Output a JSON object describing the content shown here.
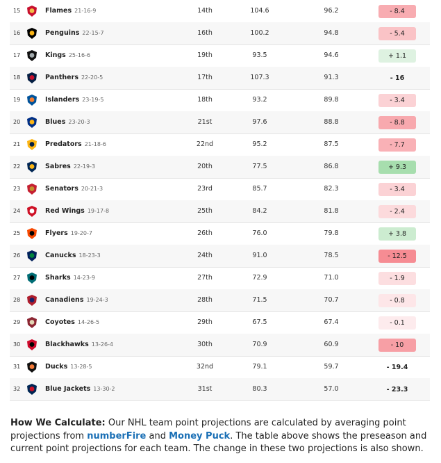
{
  "rows": [
    {
      "rank": "15",
      "team": "Flames",
      "record": "21-16-9",
      "proj_rank": "14th",
      "preseason": "104.6",
      "current": "96.2",
      "change": "- 8.4",
      "change_value": -8.4,
      "logo": "flames-logo",
      "logo_colors": [
        "#c8102e",
        "#f1be48"
      ]
    },
    {
      "rank": "16",
      "team": "Penguins",
      "record": "22-15-7",
      "proj_rank": "16th",
      "preseason": "100.2",
      "current": "94.8",
      "change": "- 5.4",
      "change_value": -5.4,
      "logo": "penguins-logo",
      "logo_colors": [
        "#000000",
        "#fcb514"
      ]
    },
    {
      "rank": "17",
      "team": "Kings",
      "record": "25-16-6",
      "proj_rank": "19th",
      "preseason": "93.5",
      "current": "94.6",
      "change": "+ 1.1",
      "change_value": 1.1,
      "logo": "kings-logo",
      "logo_colors": [
        "#111111",
        "#a2aaad"
      ]
    },
    {
      "rank": "18",
      "team": "Panthers",
      "record": "22-20-5",
      "proj_rank": "17th",
      "preseason": "107.3",
      "current": "91.3",
      "change": "- 16",
      "change_value": -16,
      "logo": "panthers-logo",
      "logo_colors": [
        "#041e42",
        "#c8102e"
      ]
    },
    {
      "rank": "19",
      "team": "Islanders",
      "record": "23-19-5",
      "proj_rank": "18th",
      "preseason": "93.2",
      "current": "89.8",
      "change": "- 3.4",
      "change_value": -3.4,
      "logo": "islanders-logo",
      "logo_colors": [
        "#00539b",
        "#f47d30"
      ]
    },
    {
      "rank": "20",
      "team": "Blues",
      "record": "23-20-3",
      "proj_rank": "21st",
      "preseason": "97.6",
      "current": "88.8",
      "change": "- 8.8",
      "change_value": -8.8,
      "logo": "blues-logo",
      "logo_colors": [
        "#002f87",
        "#fcb514"
      ]
    },
    {
      "rank": "21",
      "team": "Predators",
      "record": "21-18-6",
      "proj_rank": "22nd",
      "preseason": "95.2",
      "current": "87.5",
      "change": "- 7.7",
      "change_value": -7.7,
      "logo": "predators-logo",
      "logo_colors": [
        "#fcb514",
        "#041e42"
      ]
    },
    {
      "rank": "22",
      "team": "Sabres",
      "record": "22-19-3",
      "proj_rank": "20th",
      "preseason": "77.5",
      "current": "86.8",
      "change": "+ 9.3",
      "change_value": 9.3,
      "logo": "sabres-logo",
      "logo_colors": [
        "#002654",
        "#fcb514"
      ]
    },
    {
      "rank": "23",
      "team": "Senators",
      "record": "20-21-3",
      "proj_rank": "23rd",
      "preseason": "85.7",
      "current": "82.3",
      "change": "- 3.4",
      "change_value": -3.4,
      "logo": "senators-logo",
      "logo_colors": [
        "#c52032",
        "#c2912c"
      ]
    },
    {
      "rank": "24",
      "team": "Red Wings",
      "record": "19-17-8",
      "proj_rank": "25th",
      "preseason": "84.2",
      "current": "81.8",
      "change": "- 2.4",
      "change_value": -2.4,
      "logo": "red-wings-logo",
      "logo_colors": [
        "#ce1126",
        "#ffffff"
      ]
    },
    {
      "rank": "25",
      "team": "Flyers",
      "record": "19-20-7",
      "proj_rank": "26th",
      "preseason": "76.0",
      "current": "79.8",
      "change": "+ 3.8",
      "change_value": 3.8,
      "logo": "flyers-logo",
      "logo_colors": [
        "#f74902",
        "#000000"
      ]
    },
    {
      "rank": "26",
      "team": "Canucks",
      "record": "18-23-3",
      "proj_rank": "24th",
      "preseason": "91.0",
      "current": "78.5",
      "change": "- 12.5",
      "change_value": -12.5,
      "logo": "canucks-logo",
      "logo_colors": [
        "#00205b",
        "#00843d"
      ]
    },
    {
      "rank": "27",
      "team": "Sharks",
      "record": "14-23-9",
      "proj_rank": "27th",
      "preseason": "72.9",
      "current": "71.0",
      "change": "- 1.9",
      "change_value": -1.9,
      "logo": "sharks-logo",
      "logo_colors": [
        "#006d75",
        "#000000"
      ]
    },
    {
      "rank": "28",
      "team": "Canadiens",
      "record": "19-24-3",
      "proj_rank": "28th",
      "preseason": "71.5",
      "current": "70.7",
      "change": "- 0.8",
      "change_value": -0.8,
      "logo": "canadiens-logo",
      "logo_colors": [
        "#af1e2d",
        "#192168"
      ]
    },
    {
      "rank": "29",
      "team": "Coyotes",
      "record": "14-26-5",
      "proj_rank": "29th",
      "preseason": "67.5",
      "current": "67.4",
      "change": "- 0.1",
      "change_value": -0.1,
      "logo": "coyotes-logo",
      "logo_colors": [
        "#8c2633",
        "#e2d6b5"
      ]
    },
    {
      "rank": "30",
      "team": "Blackhawks",
      "record": "13-26-4",
      "proj_rank": "30th",
      "preseason": "70.9",
      "current": "60.9",
      "change": "- 10",
      "change_value": -10,
      "logo": "blackhawks-logo",
      "logo_colors": [
        "#cf0a2c",
        "#000000"
      ]
    },
    {
      "rank": "31",
      "team": "Ducks",
      "record": "13-28-5",
      "proj_rank": "32nd",
      "preseason": "79.1",
      "current": "59.7",
      "change": "- 19.4",
      "change_value": -19.4,
      "logo": "ducks-logo",
      "logo_colors": [
        "#111111",
        "#f47a38"
      ]
    },
    {
      "rank": "32",
      "team": "Blue Jackets",
      "record": "13-30-2",
      "proj_rank": "31st",
      "preseason": "80.3",
      "current": "57.0",
      "change": "- 23.3",
      "change_value": -23.3,
      "logo": "blue-jackets-logo",
      "logo_colors": [
        "#002654",
        "#ce1126"
      ]
    }
  ],
  "note": {
    "heading": "How We Calculate:",
    "text1": " Our NHL team point projections are calculated by averaging point projections from ",
    "link1": "numberFire",
    "text2": " and ",
    "link2": "Money Puck",
    "text3": ". The table above shows the preseason and current point projections for each team. The change in these two projections is also shown."
  },
  "colors": {
    "link": "#1a6fb5",
    "negative": "#f26b72",
    "positive": "#8fd19a",
    "row_alt": "#f7f7f7"
  }
}
